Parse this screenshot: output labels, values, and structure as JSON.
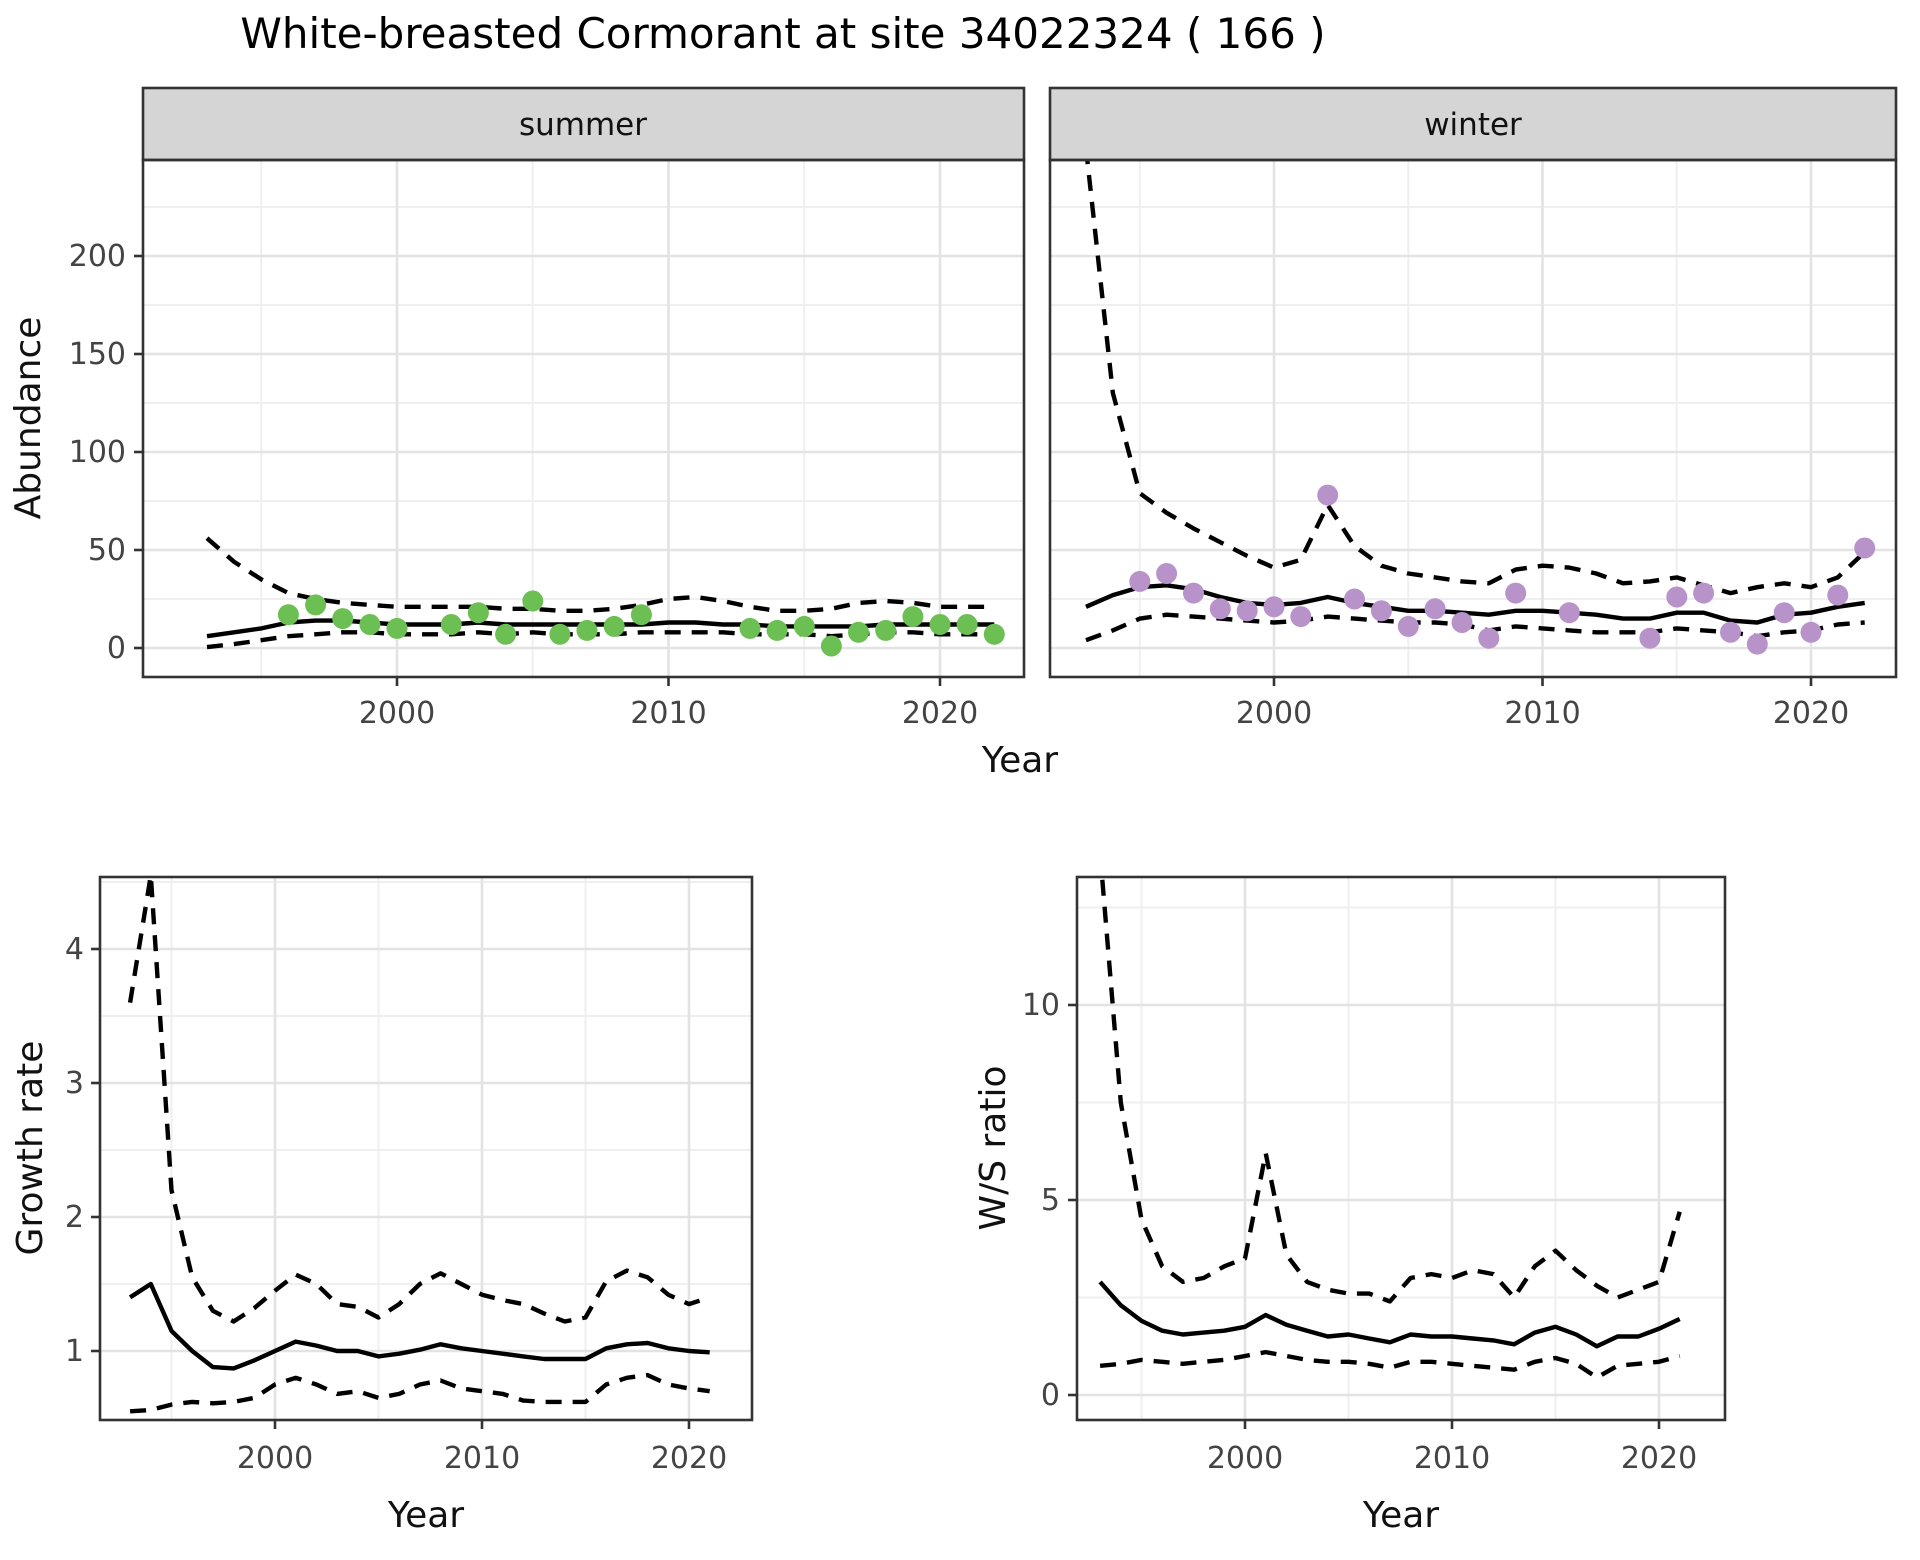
{
  "title": "White-breasted Cormorant at site 34022324 ( 166 )",
  "colors": {
    "summer_point": "#6cbf53",
    "winter_point": "#b793c9",
    "line": "#000000",
    "strip_bg": "#d5d5d5",
    "panel_bg": "#ffffff",
    "panel_border": "#333333",
    "grid_major": "#e3e3e3",
    "grid_minor": "#efefef",
    "tick_text": "#444444",
    "axis_title_text": "#111111",
    "title_text": "#000000"
  },
  "chart_data": [
    {
      "id": "abundance-summer",
      "type": "line",
      "facet_label": "summer",
      "xlabel": "Year",
      "ylabel": "Abundance",
      "x_ticks": [
        2000,
        2010,
        2020
      ],
      "y_ticks": [
        0,
        50,
        100,
        150,
        200
      ],
      "xlim": [
        1990.6,
        2023.1
      ],
      "ylim": [
        -5,
        249
      ],
      "grid": true,
      "x": [
        1993,
        1994,
        1995,
        1996,
        1997,
        1998,
        1999,
        2000,
        2001,
        2002,
        2003,
        2004,
        2005,
        2006,
        2007,
        2008,
        2009,
        2010,
        2011,
        2012,
        2013,
        2014,
        2015,
        2016,
        2017,
        2018,
        2019,
        2020,
        2021,
        2022
      ],
      "series": [
        {
          "name": "median",
          "style": "solid",
          "values": [
            6,
            8,
            10,
            13,
            14,
            14,
            13,
            12,
            12,
            12,
            13,
            12,
            12,
            12,
            12,
            12,
            12,
            13,
            13,
            12,
            12,
            11,
            11,
            11,
            11,
            12,
            12,
            12,
            12,
            12
          ]
        },
        {
          "name": "upper_ci",
          "style": "dashed",
          "values": [
            56,
            44,
            35,
            28,
            25,
            23,
            22,
            21,
            21,
            21,
            21,
            20,
            20,
            19,
            19,
            20,
            22,
            25,
            26,
            24,
            21,
            19,
            19,
            20,
            23,
            24,
            23,
            21,
            21,
            21
          ]
        },
        {
          "name": "lower_ci",
          "style": "dashed",
          "values": [
            0.5,
            2,
            4,
            6,
            7,
            8,
            8,
            7,
            7,
            7,
            8,
            7,
            8,
            7,
            7,
            7,
            8,
            8,
            8,
            8,
            7,
            7,
            7,
            6,
            7,
            8,
            8,
            7,
            7,
            7
          ]
        }
      ],
      "points": {
        "x": [
          1996,
          1997,
          1998,
          1999,
          2000,
          2002,
          2003,
          2004,
          2005,
          2006,
          2007,
          2008,
          2009,
          2013,
          2014,
          2015,
          2016,
          2017,
          2018,
          2019,
          2020,
          2021,
          2022
        ],
        "y": [
          17,
          22,
          15,
          12,
          10,
          12,
          18,
          7,
          24,
          7,
          9,
          11,
          17,
          10,
          9,
          11,
          1,
          8,
          9,
          16,
          12,
          12,
          7
        ]
      }
    },
    {
      "id": "abundance-winter",
      "type": "line",
      "facet_label": "winter",
      "xlabel": "Year",
      "ylabel": "Abundance",
      "x_ticks": [
        2000,
        2010,
        2020
      ],
      "y_ticks": [
        0,
        50,
        100,
        150,
        200
      ],
      "xlim": [
        1991.7,
        2023.2
      ],
      "ylim": [
        -5,
        249
      ],
      "grid": true,
      "x": [
        1993,
        1994,
        1995,
        1996,
        1997,
        1998,
        1999,
        2000,
        2001,
        2002,
        2003,
        2004,
        2005,
        2006,
        2007,
        2008,
        2009,
        2010,
        2011,
        2012,
        2013,
        2014,
        2015,
        2016,
        2017,
        2018,
        2019,
        2020,
        2021,
        2022
      ],
      "series": [
        {
          "name": "median",
          "style": "solid",
          "values": [
            21,
            27,
            31,
            32,
            30,
            26,
            23,
            22,
            23,
            26,
            23,
            21,
            19,
            19,
            18,
            17,
            19,
            19,
            18,
            17,
            15,
            15,
            18,
            18,
            14,
            13,
            17,
            18,
            21,
            23
          ]
        },
        {
          "name": "upper_ci",
          "style": "dashed",
          "values": [
            255,
            130,
            79,
            69,
            61,
            54,
            47,
            41,
            45,
            73,
            52,
            42,
            38,
            36,
            34,
            33,
            40,
            42,
            41,
            38,
            33,
            34,
            36,
            32,
            28,
            31,
            33,
            31,
            36,
            49
          ]
        },
        {
          "name": "lower_ci",
          "style": "dashed",
          "values": [
            4,
            9,
            15,
            17,
            16,
            15,
            14,
            13,
            14,
            16,
            15,
            14,
            13,
            13,
            12,
            9,
            11,
            10,
            9,
            8,
            8,
            8,
            10,
            9,
            8,
            6,
            8,
            9,
            12,
            13
          ]
        }
      ],
      "points": {
        "x": [
          1995,
          1996,
          1997,
          1998,
          1999,
          2000,
          2001,
          2002,
          2003,
          2004,
          2005,
          2006,
          2007,
          2008,
          2009,
          2011,
          2014,
          2015,
          2016,
          2017,
          2018,
          2019,
          2020,
          2021,
          2022
        ],
        "y": [
          34,
          38,
          28,
          20,
          19,
          21,
          16,
          78,
          25,
          19,
          11,
          20,
          13,
          5,
          28,
          18,
          5,
          26,
          28,
          8,
          2,
          18,
          8,
          27,
          51
        ]
      }
    },
    {
      "id": "growth-rate",
      "type": "line",
      "facet_label": "",
      "xlabel": "Year",
      "ylabel": "Growth rate",
      "x_ticks": [
        2000,
        2010,
        2020
      ],
      "y_ticks": [
        1,
        2,
        3,
        4
      ],
      "xlim": [
        1991.5,
        2023.0
      ],
      "ylim": [
        0.45,
        4.6
      ],
      "grid": true,
      "x": [
        1993,
        1994,
        1995,
        1996,
        1997,
        1998,
        1999,
        2000,
        2001,
        2002,
        2003,
        2004,
        2005,
        2006,
        2007,
        2008,
        2009,
        2010,
        2011,
        2012,
        2013,
        2014,
        2015,
        2016,
        2017,
        2018,
        2019,
        2020,
        2021
      ],
      "series": [
        {
          "name": "median",
          "style": "solid",
          "values": [
            1.4,
            1.5,
            1.15,
            1.0,
            0.88,
            0.87,
            0.93,
            1.0,
            1.07,
            1.04,
            1.0,
            1.0,
            0.96,
            0.98,
            1.01,
            1.05,
            1.02,
            1.0,
            0.98,
            0.96,
            0.94,
            0.94,
            0.94,
            1.02,
            1.05,
            1.06,
            1.02,
            1.0,
            0.99
          ]
        },
        {
          "name": "upper_ci",
          "style": "dashed",
          "values": [
            3.6,
            4.55,
            2.2,
            1.55,
            1.3,
            1.22,
            1.32,
            1.45,
            1.57,
            1.5,
            1.35,
            1.33,
            1.25,
            1.35,
            1.5,
            1.58,
            1.5,
            1.42,
            1.38,
            1.35,
            1.28,
            1.22,
            1.25,
            1.52,
            1.6,
            1.55,
            1.42,
            1.35,
            1.4
          ]
        },
        {
          "name": "lower_ci",
          "style": "dashed",
          "values": [
            0.55,
            0.56,
            0.6,
            0.62,
            0.61,
            0.62,
            0.65,
            0.75,
            0.8,
            0.75,
            0.68,
            0.7,
            0.65,
            0.68,
            0.75,
            0.78,
            0.72,
            0.7,
            0.68,
            0.63,
            0.62,
            0.62,
            0.62,
            0.75,
            0.8,
            0.82,
            0.75,
            0.72,
            0.7
          ]
        }
      ],
      "points": {
        "x": [],
        "y": []
      }
    },
    {
      "id": "ws-ratio",
      "type": "line",
      "facet_label": "",
      "xlabel": "Year",
      "ylabel": "W/S ratio",
      "x_ticks": [
        2000,
        2010,
        2020
      ],
      "y_ticks": [
        0,
        5,
        10
      ],
      "xlim": [
        1991.5,
        2023.0
      ],
      "ylim": [
        -0.6,
        13.9
      ],
      "grid": true,
      "x": [
        1993,
        1994,
        1995,
        1996,
        1997,
        1998,
        1999,
        2000,
        2001,
        2002,
        2003,
        2004,
        2005,
        2006,
        2007,
        2008,
        2009,
        2010,
        2011,
        2012,
        2013,
        2014,
        2015,
        2016,
        2017,
        2018,
        2019,
        2020,
        2021
      ],
      "series": [
        {
          "name": "median",
          "style": "solid",
          "values": [
            2.9,
            2.3,
            1.9,
            1.65,
            1.55,
            1.6,
            1.65,
            1.75,
            2.05,
            1.8,
            1.65,
            1.5,
            1.55,
            1.45,
            1.35,
            1.55,
            1.5,
            1.5,
            1.45,
            1.4,
            1.3,
            1.6,
            1.75,
            1.55,
            1.25,
            1.5,
            1.5,
            1.7,
            1.95
          ]
        },
        {
          "name": "upper_ci",
          "style": "dashed",
          "values": [
            13.9,
            7.5,
            4.5,
            3.3,
            2.9,
            3.0,
            3.3,
            3.5,
            6.2,
            3.6,
            2.9,
            2.7,
            2.6,
            2.6,
            2.4,
            3.0,
            3.1,
            3.0,
            3.2,
            3.1,
            2.5,
            3.3,
            3.7,
            3.2,
            2.8,
            2.5,
            2.7,
            2.9,
            4.7
          ]
        },
        {
          "name": "lower_ci",
          "style": "dashed",
          "values": [
            0.75,
            0.8,
            0.9,
            0.85,
            0.8,
            0.85,
            0.9,
            1.0,
            1.1,
            1.0,
            0.9,
            0.85,
            0.85,
            0.8,
            0.7,
            0.85,
            0.85,
            0.8,
            0.75,
            0.7,
            0.65,
            0.85,
            0.95,
            0.8,
            0.45,
            0.75,
            0.8,
            0.85,
            1.0
          ]
        }
      ],
      "points": {
        "x": [],
        "y": []
      }
    }
  ]
}
